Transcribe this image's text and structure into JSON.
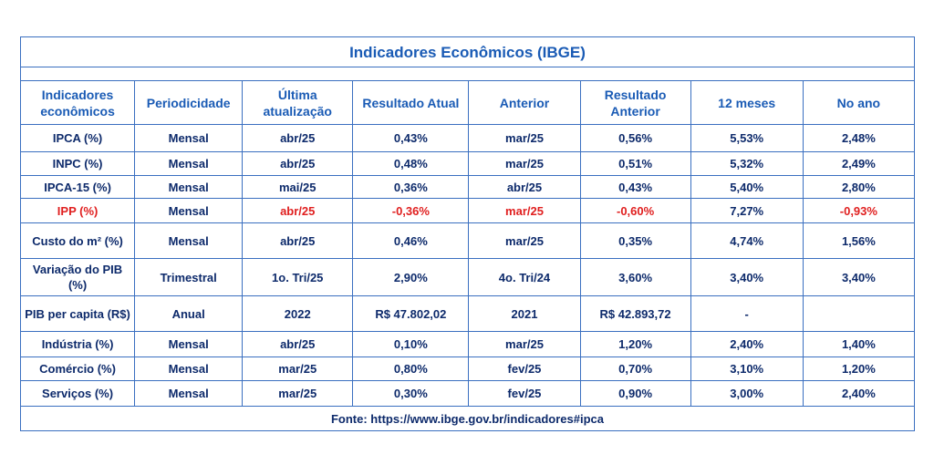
{
  "title": "Indicadores Econômicos (IBGE)",
  "headers": [
    "Indicadores econômicos",
    "Periodicidade",
    "Última atualização",
    "Resultado Atual",
    "Anterior",
    "Resultado Anterior",
    "12 meses",
    "No ano"
  ],
  "rows": [
    [
      "IPCA (%)",
      "Mensal",
      "abr/25",
      "0,43%",
      "mar/25",
      "0,56%",
      "5,53%",
      "2,48%"
    ],
    [
      "INPC (%)",
      "Mensal",
      "abr/25",
      "0,48%",
      "mar/25",
      "0,51%",
      "5,32%",
      "2,49%"
    ],
    [
      "IPCA-15 (%)",
      "Mensal",
      "mai/25",
      "0,36%",
      "abr/25",
      "0,43%",
      "5,40%",
      "2,80%"
    ],
    [
      "IPP (%)",
      "Mensal",
      "abr/25",
      "-0,36%",
      "mar/25",
      "-0,60%",
      "7,27%",
      "-0,93%"
    ],
    [
      "Custo do m² (%)",
      "Mensal",
      "abr/25",
      "0,46%",
      "mar/25",
      "0,35%",
      "4,74%",
      "1,56%"
    ],
    [
      "Variação do PIB (%)",
      "Trimestral",
      "1o. Tri/25",
      "2,90%",
      "4o. Tri/24",
      "3,60%",
      "3,40%",
      "3,40%"
    ],
    [
      "PIB per capita (R$)",
      "Anual",
      "2022",
      "R$ 47.802,02",
      "2021",
      "R$ 42.893,72",
      "-",
      ""
    ],
    [
      "Indústria (%)",
      "Mensal",
      "abr/25",
      "0,10%",
      "mar/25",
      "1,20%",
      "2,40%",
      "1,40%"
    ],
    [
      "Comércio (%)",
      "Mensal",
      "mar/25",
      "0,80%",
      "fev/25",
      "0,70%",
      "3,10%",
      "1,20%"
    ],
    [
      "Serviços (%)",
      "Mensal",
      "mar/25",
      "0,30%",
      "fev/25",
      "0,90%",
      "3,00%",
      "2,40%"
    ]
  ],
  "footer": "Fonte:  https://www.ibge.gov.br/indicadores#ipca",
  "colors": {
    "border": "#3a6fc0",
    "heading": "#1a5bb5",
    "text": "#0d2a6b",
    "highlight": "#e02020"
  }
}
